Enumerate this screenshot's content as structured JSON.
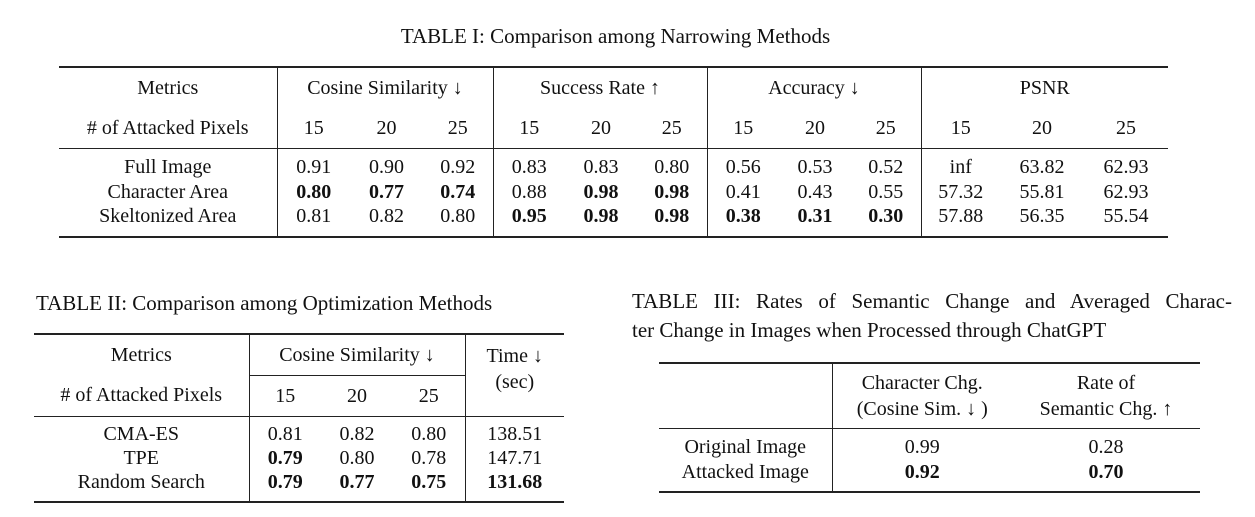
{
  "table1": {
    "caption": "TABLE I: Comparison among Narrowing Methods",
    "row_label_header": "Metrics",
    "pixels_label": "# of Attacked Pixels",
    "groups": [
      "Cosine Similarity ↓",
      "Success Rate ↑",
      "Accuracy ↓",
      "PSNR"
    ],
    "pixel_counts": [
      "15",
      "20",
      "25"
    ],
    "rows": [
      {
        "name": "Full Image",
        "values": [
          "0.91",
          "0.90",
          "0.92",
          "0.83",
          "0.83",
          "0.80",
          "0.56",
          "0.53",
          "0.52",
          "inf",
          "63.82",
          "62.93"
        ],
        "bold": [
          false,
          false,
          false,
          false,
          false,
          false,
          false,
          false,
          false,
          false,
          false,
          false
        ]
      },
      {
        "name": "Character Area",
        "values": [
          "0.80",
          "0.77",
          "0.74",
          "0.88",
          "0.98",
          "0.98",
          "0.41",
          "0.43",
          "0.55",
          "57.32",
          "55.81",
          "62.93"
        ],
        "bold": [
          true,
          true,
          true,
          false,
          true,
          true,
          false,
          false,
          false,
          false,
          false,
          false
        ]
      },
      {
        "name": "Skeltonized Area",
        "values": [
          "0.81",
          "0.82",
          "0.80",
          "0.95",
          "0.98",
          "0.98",
          "0.38",
          "0.31",
          "0.30",
          "57.88",
          "56.35",
          "55.54"
        ],
        "bold": [
          false,
          false,
          false,
          true,
          true,
          true,
          true,
          true,
          true,
          false,
          false,
          false
        ]
      }
    ]
  },
  "table2": {
    "caption": "TABLE II: Comparison among Optimization Methods",
    "row_label_header": "Metrics",
    "pixels_label": "# of Attacked Pixels",
    "group": "Cosine Similarity ↓",
    "time_header": "Time ↓",
    "time_unit": "(sec)",
    "pixel_counts": [
      "15",
      "20",
      "25"
    ],
    "rows": [
      {
        "name": "CMA-ES",
        "values": [
          "0.81",
          "0.82",
          "0.80",
          "138.51"
        ],
        "bold": [
          false,
          false,
          false,
          false
        ]
      },
      {
        "name": "TPE",
        "values": [
          "0.79",
          "0.80",
          "0.78",
          "147.71"
        ],
        "bold": [
          true,
          false,
          false,
          false
        ]
      },
      {
        "name": "Random Search",
        "values": [
          "0.79",
          "0.77",
          "0.75",
          "131.68"
        ],
        "bold": [
          true,
          true,
          true,
          true
        ]
      }
    ]
  },
  "table3": {
    "caption_line1": "TABLE III: Rates of Semantic Change and Averaged Charac-",
    "caption_line2": "ter Change in Images when Processed through ChatGPT",
    "col1_line1": "Character Chg.",
    "col1_line2": "(Cosine Sim. ↓ )",
    "col2_line1": "Rate of",
    "col2_line2": "Semantic Chg. ↑",
    "rows": [
      {
        "name": "Original Image",
        "values": [
          "0.99",
          "0.28"
        ],
        "bold": [
          false,
          false
        ]
      },
      {
        "name": "Attacked Image",
        "values": [
          "0.92",
          "0.70"
        ],
        "bold": [
          true,
          true
        ]
      }
    ]
  }
}
